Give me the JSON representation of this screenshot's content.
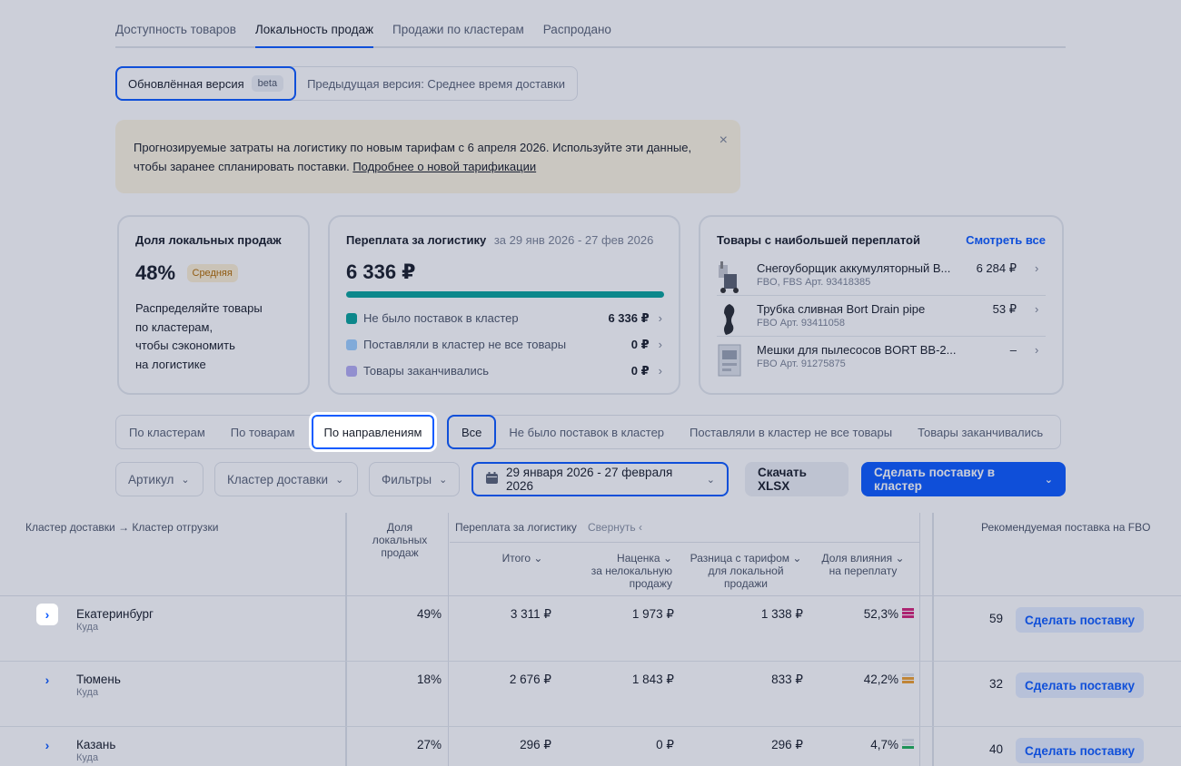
{
  "tabs": [
    "Доступность товаров",
    "Локальность продаж",
    "Продажи по кластерам",
    "Распродано"
  ],
  "version": {
    "updated": "Обновлённая версия",
    "beta": "beta",
    "previous": "Предыдущая версия: Среднее время доставки"
  },
  "banner": {
    "line1": "Прогнозируемые затраты на логистику по новым тарифам с 6 апреля 2026. Используйте эти данные,",
    "line2": "чтобы заранее спланировать поставки.",
    "link": "Подробнее о новой тарификации",
    "close": "×"
  },
  "local_card": {
    "title": "Доля локальных продаж",
    "value": "48%",
    "badge": "Средняя",
    "text1": "Распределяйте товары",
    "text2": "по кластерам,",
    "text3": "чтобы сэкономить",
    "text4": "на логистике"
  },
  "overpay_card": {
    "title": "Переплата за логистику",
    "period": "за 29 янв 2026 - 27 фев 2026",
    "value": "6 336 ₽",
    "progress": 1.0,
    "rows": [
      {
        "label": "Не было поставок в кластер",
        "value": "6 336 ₽",
        "color": "#0aa39c"
      },
      {
        "label": "Поставляли в кластер не все товары",
        "value": "0 ₽",
        "color": "#9fd0ff"
      },
      {
        "label": "Товары заканчивались",
        "value": "0 ₽",
        "color": "#b5adf2"
      }
    ]
  },
  "top_card": {
    "title": "Товары с наибольшей переплатой",
    "link": "Смотреть все",
    "items": [
      {
        "name": "Снегоуборщик аккумуляторный B...",
        "meta": "FBO, FBS Арт. 93418385",
        "value": "6 284 ₽"
      },
      {
        "name": "Трубка сливная Bort Drain pipe",
        "meta": "FBO Арт. 93411058",
        "value": "53 ₽"
      },
      {
        "name": "Мешки для пылесосов BORT BB-2...",
        "meta": "FBO Арт. 91275875",
        "value": "–"
      }
    ]
  },
  "group_seg": [
    "По кластерам",
    "По товарам",
    "По направлениям"
  ],
  "filter_seg": [
    "Все",
    "Не было поставок в кластер",
    "Поставляли в кластер не все товары",
    "Товары заканчивались"
  ],
  "filters": {
    "article": "Артикул",
    "cluster": "Кластер доставки",
    "more": "Фильтры",
    "date": "29 января 2026 - 27 февраля 2026",
    "download": "Скачать XLSX",
    "supply": "Сделать поставку в кластер"
  },
  "table": {
    "h_cluster": "Кластер доставки → Кластер отгрузки",
    "h_share_1": "Доля",
    "h_share_2": "локальных",
    "h_share_3": "продаж",
    "h_overpay": "Переплата за логистику",
    "h_collapse": "Свернуть",
    "h_total": "Итого",
    "h_markup_1": "Наценка",
    "h_markup_2": "за нелокальную",
    "h_markup_3": "продажу",
    "h_diff_1": "Разница с тарифом",
    "h_diff_2": "для локальной",
    "h_diff_3": "продажи",
    "h_influence_1": "Доля влияния",
    "h_influence_2": "на переплату",
    "h_recommend": "Рекомендуемая поставка на FBO",
    "rows": [
      {
        "city": "Екатеринбург",
        "sub": "Куда",
        "share": "49%",
        "total": "3 311 ₽",
        "markup": "1 973 ₽",
        "diff": "1 338 ₽",
        "influence": "52,3%",
        "level": 3,
        "color": "#d6247a",
        "rec": "59",
        "btn": "Сделать поставку"
      },
      {
        "city": "Тюмень",
        "sub": "Куда",
        "share": "18%",
        "total": "2 676 ₽",
        "markup": "1 843 ₽",
        "diff": "833 ₽",
        "influence": "42,2%",
        "level": 2,
        "color": "#f0a030",
        "rec": "32",
        "btn": "Сделать поставку"
      },
      {
        "city": "Казань",
        "sub": "Куда",
        "share": "27%",
        "total": "296 ₽",
        "markup": "0 ₽",
        "diff": "296 ₽",
        "influence": "4,7%",
        "level": 1,
        "color": "#1fb35a",
        "rec": "40",
        "btn": "Сделать поставку"
      }
    ]
  }
}
